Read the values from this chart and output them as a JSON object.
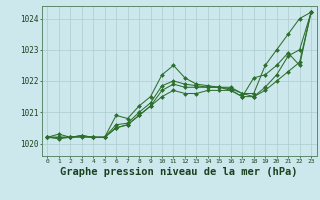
{
  "background_color": "#cce8ec",
  "grid_color": "#aacccc",
  "line_color": "#2d6e2d",
  "marker_color": "#2d6e2d",
  "title": "Graphe pression niveau de la mer (hPa)",
  "title_fontsize": 7.5,
  "xlabel_ticks": [
    0,
    1,
    2,
    3,
    4,
    5,
    6,
    7,
    8,
    9,
    10,
    11,
    12,
    13,
    14,
    15,
    16,
    17,
    18,
    19,
    20,
    21,
    22,
    23
  ],
  "ylim": [
    1019.6,
    1024.4
  ],
  "yticks": [
    1020,
    1021,
    1022,
    1023,
    1024
  ],
  "series": [
    [
      1020.2,
      1020.3,
      1020.2,
      1020.2,
      1020.2,
      1020.2,
      1020.9,
      1020.8,
      1021.2,
      1021.5,
      1022.2,
      1022.5,
      1022.1,
      1021.9,
      1021.85,
      1021.8,
      1021.75,
      1021.6,
      1021.6,
      1022.5,
      1023.0,
      1023.5,
      1024.0,
      1024.2
    ],
    [
      1020.2,
      1020.15,
      1020.2,
      1020.25,
      1020.2,
      1020.2,
      1020.6,
      1020.65,
      1021.0,
      1021.3,
      1021.85,
      1022.0,
      1021.9,
      1021.85,
      1021.8,
      1021.8,
      1021.7,
      1021.5,
      1022.1,
      1022.2,
      1022.5,
      1022.9,
      1022.5,
      1024.2
    ],
    [
      1020.2,
      1020.2,
      1020.2,
      1020.25,
      1020.2,
      1020.2,
      1020.5,
      1020.6,
      1020.9,
      1021.2,
      1021.7,
      1021.9,
      1021.8,
      1021.8,
      1021.8,
      1021.8,
      1021.8,
      1021.6,
      1021.5,
      1021.8,
      1022.2,
      1022.8,
      1023.0,
      1024.2
    ],
    [
      1020.2,
      1020.2,
      1020.2,
      1020.25,
      1020.2,
      1020.2,
      1020.5,
      1020.6,
      1020.9,
      1021.2,
      1021.5,
      1021.7,
      1021.6,
      1021.6,
      1021.7,
      1021.7,
      1021.7,
      1021.5,
      1021.5,
      1021.7,
      1022.0,
      1022.3,
      1022.6,
      1024.2
    ]
  ]
}
